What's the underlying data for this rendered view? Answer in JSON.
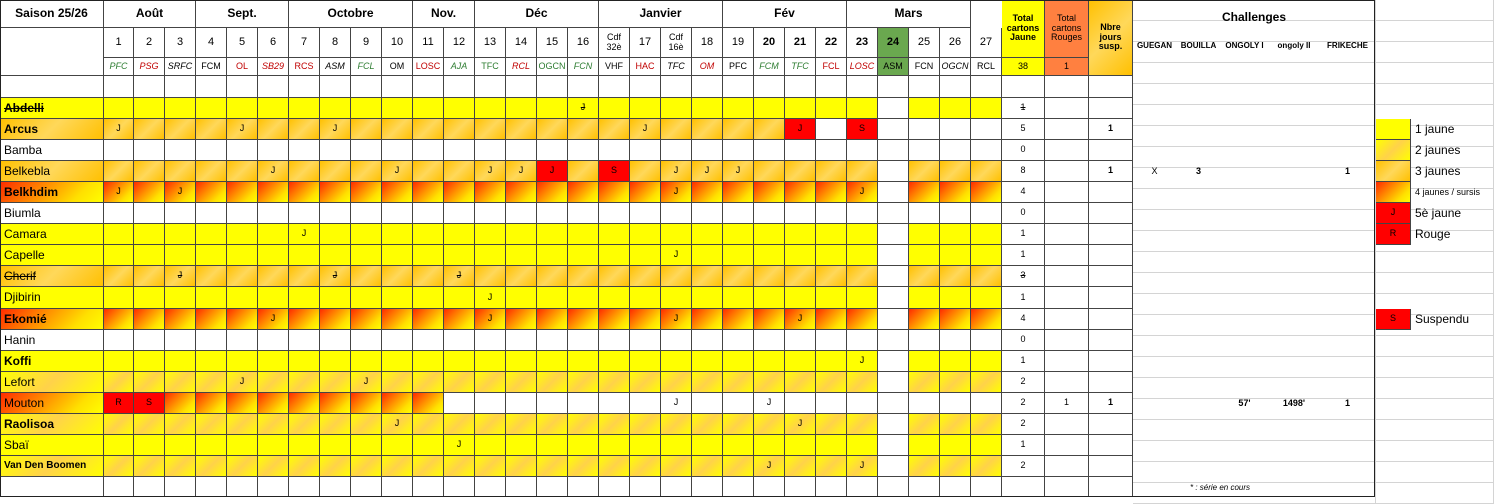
{
  "season": "Saison 25/26",
  "months": [
    {
      "label": "Août",
      "span": [
        1,
        3
      ]
    },
    {
      "label": "Sept.",
      "span": [
        4,
        6
      ]
    },
    {
      "label": "Octobre",
      "span": [
        7,
        10
      ]
    },
    {
      "label": "Nov.",
      "span": [
        11,
        12
      ]
    },
    {
      "label": "Déc",
      "span": [
        13,
        16
      ]
    },
    {
      "label": "Janvier",
      "span": [
        17,
        20
      ]
    },
    {
      "label": "Fév",
      "span": [
        21,
        24
      ]
    },
    {
      "label": "Mars",
      "span": [
        25,
        28
      ]
    }
  ],
  "columns": [
    {
      "num": "1",
      "opp": "PFC",
      "oc": "#2e7d32",
      "it": true
    },
    {
      "num": "2",
      "opp": "PSG",
      "oc": "#c00000",
      "it": true
    },
    {
      "num": "3",
      "opp": "SRFC",
      "oc": "#000000",
      "it": true
    },
    {
      "num": "4",
      "opp": "FCM",
      "oc": "#000000",
      "it": false
    },
    {
      "num": "5",
      "opp": "OL",
      "oc": "#c00000",
      "it": false
    },
    {
      "num": "6",
      "opp": "SB29",
      "oc": "#c00000",
      "it": true
    },
    {
      "num": "7",
      "opp": "RCS",
      "oc": "#c00000",
      "it": false
    },
    {
      "num": "8",
      "opp": "ASM",
      "oc": "#000000",
      "it": true
    },
    {
      "num": "9",
      "opp": "FCL",
      "oc": "#2e7d32",
      "it": true
    },
    {
      "num": "10",
      "opp": "OM",
      "oc": "#000000",
      "it": false
    },
    {
      "num": "11",
      "opp": "LOSC",
      "oc": "#c00000",
      "it": false
    },
    {
      "num": "12",
      "opp": "AJA",
      "oc": "#2e7d32",
      "it": true
    },
    {
      "num": "13",
      "opp": "TFC",
      "oc": "#2e7d32",
      "it": false
    },
    {
      "num": "14",
      "opp": "RCL",
      "oc": "#c00000",
      "it": true
    },
    {
      "num": "15",
      "opp": "OGCN",
      "oc": "#2e7d32",
      "it": false
    },
    {
      "num": "16",
      "opp": "FCN",
      "oc": "#2e7d32",
      "it": true
    },
    {
      "num": "Cdf 32è",
      "opp": "VHF",
      "oc": "#000000",
      "it": false
    },
    {
      "num": "17",
      "opp": "HAC",
      "oc": "#c00000",
      "it": false
    },
    {
      "num": "Cdf 16è",
      "opp": "TFC",
      "oc": "#000000",
      "it": true
    },
    {
      "num": "18",
      "opp": "OM",
      "oc": "#c00000",
      "it": true
    },
    {
      "num": "19",
      "opp": "PFC",
      "oc": "#000000",
      "it": false
    },
    {
      "num": "20",
      "opp": "FCM",
      "oc": "#2e7d32",
      "it": true
    },
    {
      "num": "21",
      "opp": "TFC",
      "oc": "#2e7d32",
      "it": true
    },
    {
      "num": "22",
      "opp": "FCL",
      "oc": "#c00000",
      "it": false
    },
    {
      "num": "23",
      "opp": "LOSC",
      "oc": "#c00000",
      "it": true
    },
    {
      "num": "24",
      "opp": "ASM",
      "oc": "#000000",
      "it": false
    },
    {
      "num": "25",
      "opp": "FCN",
      "oc": "#000000",
      "it": false
    },
    {
      "num": "26",
      "opp": "OGCN",
      "oc": "#000000",
      "it": true
    },
    {
      "num": "27",
      "opp": "RCL",
      "oc": "#000000",
      "it": false
    }
  ],
  "headers": {
    "total_yellow": "Total cartons Jaune",
    "total_red": "Total cartons Rouges",
    "susp_days": "Nbre jours susp.",
    "challenges": "Challenges",
    "total_yellow_value": "38",
    "total_red_value": "1",
    "challenge_cols": [
      "GUEGAN",
      "BOUILLA",
      "ONGOLY I",
      "ongoly II",
      "FRIKECHE"
    ]
  },
  "players": [
    {
      "name": "Abdelli",
      "bold": true,
      "strike": true,
      "fill": "y",
      "cells": [
        [
          "15",
          "J"
        ]
      ],
      "dark": [],
      "total": "1",
      "strikeTotal": true,
      "red": "",
      "susp": "",
      "ch": [
        "",
        "",
        "",
        "",
        ""
      ]
    },
    {
      "name": "Arcus",
      "bold": true,
      "fill": "g3",
      "cells": [
        [
          "0",
          "J"
        ],
        [
          "4",
          "J"
        ],
        [
          "7",
          "J"
        ],
        [
          "17",
          "J"
        ],
        [
          "22",
          "J"
        ],
        [
          "24",
          "S"
        ]
      ],
      "dark": [
        [
          "22",
          "red"
        ],
        [
          "24",
          "red"
        ]
      ],
      "total": "5",
      "red": "",
      "susp": "1",
      "ch": [
        "",
        "",
        "",
        "",
        ""
      ]
    },
    {
      "name": "Bamba",
      "bold": false,
      "fill": "",
      "cells": [],
      "dark": [],
      "total": "0",
      "red": "",
      "susp": "",
      "ch": [
        "",
        "",
        "",
        "",
        ""
      ]
    },
    {
      "name": "Belkebla",
      "bold": false,
      "fill": "g3",
      "cells": [
        [
          "5",
          "J"
        ],
        [
          "9",
          "J"
        ],
        [
          "12",
          "J"
        ],
        [
          "13",
          "J"
        ],
        [
          "14",
          "J"
        ],
        [
          "16",
          "S"
        ],
        [
          "18",
          "J"
        ],
        [
          "19",
          "J"
        ],
        [
          "20",
          "J"
        ]
      ],
      "dark": [
        [
          "14",
          "red"
        ],
        [
          "16",
          "red"
        ]
      ],
      "total": "8",
      "red": "",
      "susp": "1",
      "ch": [
        "X",
        "3",
        "",
        "",
        "1"
      ]
    },
    {
      "name": "Belkhdim",
      "bold": true,
      "fill": "g4",
      "cells": [
        [
          "0",
          "J"
        ],
        [
          "2",
          "J"
        ],
        [
          "18",
          "J"
        ],
        [
          "24",
          "J"
        ]
      ],
      "dark": [],
      "total": "4",
      "red": "",
      "susp": "",
      "ch": [
        "",
        "",
        "",
        "",
        ""
      ]
    },
    {
      "name": "Biumla",
      "bold": false,
      "fill": "",
      "cells": [],
      "dark": [],
      "total": "0",
      "red": "",
      "susp": "",
      "ch": [
        "",
        "",
        "",
        "",
        ""
      ]
    },
    {
      "name": "Camara",
      "bold": false,
      "fill": "y",
      "cells": [
        [
          "6",
          "J"
        ]
      ],
      "dark": [],
      "total": "1",
      "red": "",
      "susp": "",
      "ch": [
        "",
        "",
        "",
        "",
        ""
      ]
    },
    {
      "name": "Capelle",
      "bold": false,
      "fill": "y",
      "cells": [
        [
          "18",
          "J"
        ]
      ],
      "dark": [],
      "total": "1",
      "red": "",
      "susp": "",
      "ch": [
        "",
        "",
        "",
        "",
        ""
      ]
    },
    {
      "name": "Cherif",
      "bold": false,
      "strike": true,
      "fill": "g3",
      "cells": [
        [
          "2",
          "J"
        ],
        [
          "7",
          "J"
        ],
        [
          "11",
          "J"
        ]
      ],
      "dark": [],
      "total": "3",
      "strikeTotal": true,
      "red": "",
      "susp": "",
      "ch": [
        "",
        "",
        "",
        "",
        ""
      ]
    },
    {
      "name": "Djibirin",
      "bold": false,
      "fill": "y",
      "cells": [
        [
          "12",
          "J"
        ]
      ],
      "dark": [],
      "total": "1",
      "red": "",
      "susp": "",
      "ch": [
        "",
        "",
        "",
        "",
        ""
      ]
    },
    {
      "name": "Ekomié",
      "bold": true,
      "fill": "g4",
      "cells": [
        [
          "5",
          "J"
        ],
        [
          "12",
          "J"
        ],
        [
          "18",
          "J"
        ],
        [
          "22",
          "J"
        ]
      ],
      "dark": [],
      "total": "4",
      "red": "",
      "susp": "",
      "ch": [
        "",
        "",
        "",
        "",
        ""
      ]
    },
    {
      "name": "Hanin",
      "bold": false,
      "fill": "",
      "cells": [],
      "dark": [],
      "total": "0",
      "red": "",
      "susp": "",
      "ch": [
        "",
        "",
        "",
        "",
        ""
      ]
    },
    {
      "name": "Koffi",
      "bold": true,
      "fill": "y",
      "cells": [
        [
          "24",
          "J"
        ]
      ],
      "dark": [],
      "total": "1",
      "red": "",
      "susp": "",
      "ch": [
        "",
        "",
        "",
        "",
        ""
      ]
    },
    {
      "name": "Lefort",
      "bold": false,
      "fill": "g2",
      "cells": [
        [
          "4",
          "J"
        ],
        [
          "8",
          "J"
        ]
      ],
      "dark": [],
      "total": "2",
      "red": "",
      "susp": "",
      "ch": [
        "",
        "",
        "",
        "",
        ""
      ]
    },
    {
      "name": "Mouton",
      "bold": false,
      "fill": "g4",
      "cells": [
        [
          "0",
          "R"
        ],
        [
          "1",
          "S"
        ],
        [
          "18",
          "J"
        ],
        [
          "21",
          "J"
        ]
      ],
      "dark": [
        [
          "0",
          "red"
        ],
        [
          "1",
          "red"
        ]
      ],
      "total": "2",
      "red": "1",
      "susp": "1",
      "ch": [
        "",
        "",
        "57'",
        "1498'",
        "1"
      ]
    },
    {
      "name": "Raolisoa",
      "bold": true,
      "fill": "g2",
      "cells": [
        [
          "9",
          "J"
        ],
        [
          "22",
          "J"
        ]
      ],
      "dark": [],
      "total": "2",
      "red": "",
      "susp": "",
      "ch": [
        "",
        "",
        "",
        "",
        ""
      ]
    },
    {
      "name": "Sbaï",
      "bold": false,
      "fill": "y",
      "cells": [
        [
          "11",
          "J"
        ]
      ],
      "dark": [],
      "total": "1",
      "red": "",
      "susp": "",
      "ch": [
        "",
        "",
        "",
        "",
        ""
      ]
    },
    {
      "name": "Van Den Boomen",
      "bold": true,
      "small": true,
      "fill": "g2",
      "cells": [
        [
          "21",
          "J"
        ],
        [
          "24",
          "J"
        ]
      ],
      "dark": [],
      "total": "2",
      "red": "",
      "susp": "",
      "ch": [
        "",
        "",
        "",
        "",
        ""
      ]
    }
  ],
  "legend": [
    {
      "label": "1 jaune",
      "style": "y",
      "mark": ""
    },
    {
      "label": "2 jaunes",
      "style": "g2",
      "mark": ""
    },
    {
      "label": "3 jaunes",
      "style": "g3",
      "mark": ""
    },
    {
      "label": "4 jaunes / sursis",
      "style": "g4",
      "mark": "",
      "small": true
    },
    {
      "label": "5è jaune",
      "style": "red",
      "mark": "J"
    },
    {
      "label": "Rouge",
      "style": "red",
      "mark": "R"
    },
    {
      "label": "Suspendu",
      "style": "red",
      "mark": "S"
    }
  ],
  "footnote": "* : série en cours"
}
